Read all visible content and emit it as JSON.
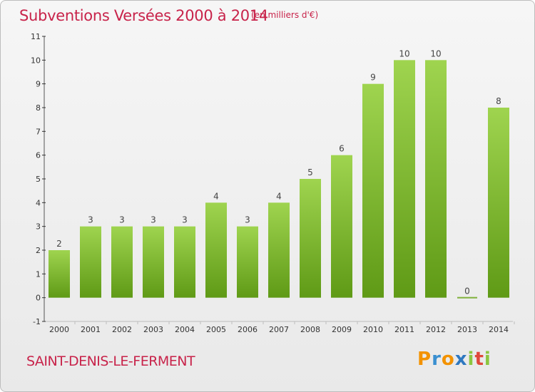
{
  "header": {
    "title": "Subventions Versées 2000 à 2014",
    "unit_note": "(en milliers d'€)"
  },
  "footer": {
    "commune": "SAINT-DENIS-LE-FERMENT",
    "logo_letters": [
      "P",
      "r",
      "o",
      "x",
      "i",
      "t",
      "i"
    ]
  },
  "colors": {
    "accent": "#c8234a",
    "bar_top": "#9fd44f",
    "bar_bottom": "#5f9a16",
    "axis": "#555555",
    "grid_tick": "#333333"
  },
  "chart_data": {
    "type": "bar",
    "categories": [
      "2000",
      "2001",
      "2002",
      "2003",
      "2004",
      "2005",
      "2006",
      "2007",
      "2008",
      "2009",
      "2010",
      "2011",
      "2012",
      "2013",
      "2014"
    ],
    "values": [
      2,
      3,
      3,
      3,
      3,
      4,
      3,
      4,
      5,
      6,
      9,
      10,
      10,
      0,
      8
    ],
    "data_labels": [
      "2",
      "3",
      "3",
      "3",
      "3",
      "4",
      "3",
      "4",
      "5",
      "6",
      "9",
      "10",
      "10",
      "0",
      "8"
    ],
    "y_tick_labels": [
      "-1",
      "0",
      "1",
      "2",
      "3",
      "4",
      "5",
      "6",
      "7",
      "8",
      "9",
      "10",
      "11"
    ],
    "ylim": [
      -1,
      11
    ],
    "grid": false,
    "legend": "none"
  }
}
